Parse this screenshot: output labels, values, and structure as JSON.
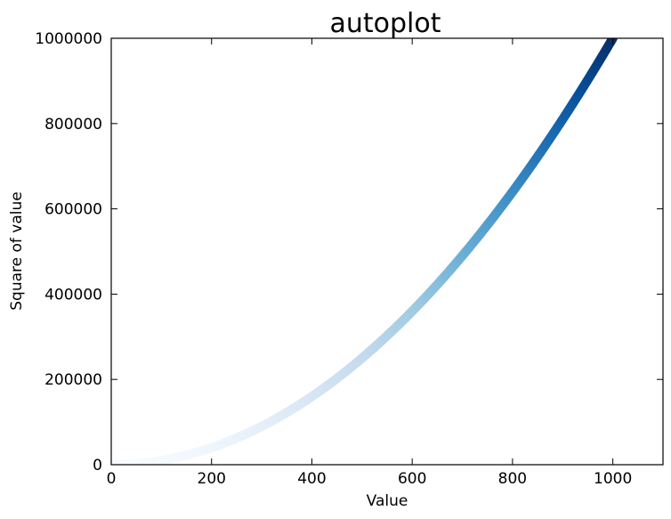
{
  "chart_data": {
    "type": "scatter",
    "title": "autoplot",
    "xlabel": "Value",
    "ylabel": "Square of value",
    "xlim": [
      0,
      1100
    ],
    "ylim": [
      0,
      1000000
    ],
    "x_ticks": [
      0,
      200,
      400,
      600,
      800,
      1000
    ],
    "y_ticks": [
      0,
      200000,
      400000,
      600000,
      800000,
      1000000
    ],
    "x_tick_labels": [
      "0",
      "200",
      "400",
      "600",
      "800",
      "1000"
    ],
    "y_tick_labels": [
      "0",
      "200000",
      "400000",
      "600000",
      "800000",
      "1000000"
    ],
    "grid": false,
    "colormap": "Blues",
    "series": [
      {
        "function": "y = x^2",
        "x_start": 1,
        "x_end": 1000,
        "x_step": 1,
        "color_by": "y"
      }
    ]
  }
}
